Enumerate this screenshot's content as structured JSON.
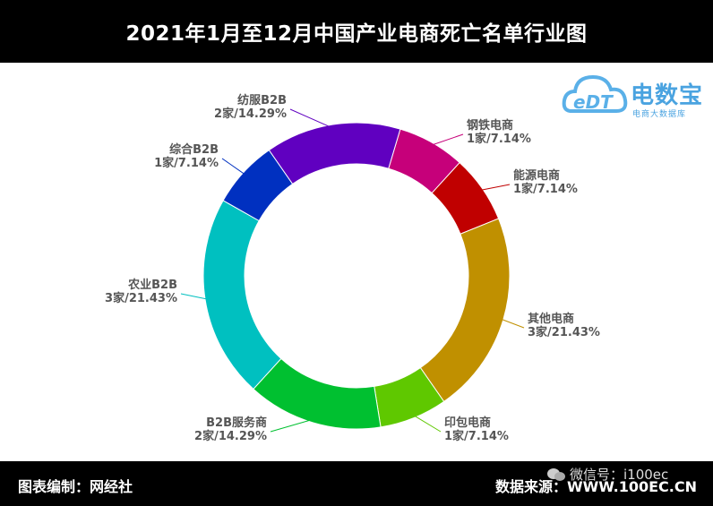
{
  "title": "2021年1月至12月中国产业电商死亡名单行业图",
  "footer": {
    "left": "图表编制：网经社",
    "right": "数据来源：WWW.100EC.CN",
    "wechat": "微信号：i100ec"
  },
  "logo": {
    "brand": "电数宝",
    "subtitle": "电商大数据库",
    "mark": "eDT"
  },
  "chart_data": {
    "type": "pie",
    "donut": true,
    "unit": "家",
    "slices": [
      {
        "label": "钢铁电商",
        "count": 1,
        "percent": 7.14,
        "color": "#c6007a"
      },
      {
        "label": "能源电商",
        "count": 1,
        "percent": 7.14,
        "color": "#c00000"
      },
      {
        "label": "其他电商",
        "count": 3,
        "percent": 21.43,
        "color": "#c09000"
      },
      {
        "label": "印包电商",
        "count": 1,
        "percent": 7.14,
        "color": "#5fc800"
      },
      {
        "label": "B2B服务商",
        "count": 2,
        "percent": 14.29,
        "color": "#00c030"
      },
      {
        "label": "农业B2B",
        "count": 3,
        "percent": 21.43,
        "color": "#00c0c0"
      },
      {
        "label": "综合B2B",
        "count": 1,
        "percent": 7.14,
        "color": "#0030c0"
      },
      {
        "label": "纺服B2B",
        "count": 2,
        "percent": 14.29,
        "color": "#6000c0"
      }
    ]
  }
}
